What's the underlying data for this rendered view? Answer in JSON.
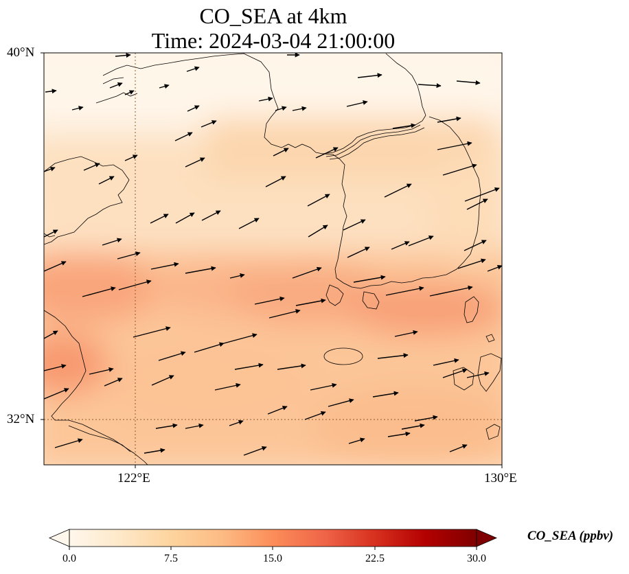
{
  "title": {
    "line1": "CO_SEA at 4km",
    "line2": "Time: 2024-03-04 21:00:00"
  },
  "map": {
    "lat_labels": [
      "40°N",
      "32°N"
    ],
    "lon_labels": [
      "122°E",
      "130°E"
    ],
    "lon_range": [
      120,
      130
    ],
    "lat_range": [
      31,
      40
    ],
    "gridlines": true
  },
  "colorbar": {
    "title": "CO_SEA (ppbv)",
    "ticks": [
      "0.0",
      "7.5",
      "15.0",
      "22.5",
      "30.0"
    ],
    "range": [
      0,
      30
    ],
    "colormap": "OrRd",
    "colors": [
      "#fff7ec",
      "#fee8c8",
      "#fdd49e",
      "#fdbb84",
      "#fc8d59",
      "#ef6548",
      "#d7301f",
      "#b30000",
      "#7f0000"
    ]
  },
  "colors": {
    "coastline": "#000000",
    "arrow": "#000000",
    "gridline": "#8b5a2b"
  }
}
